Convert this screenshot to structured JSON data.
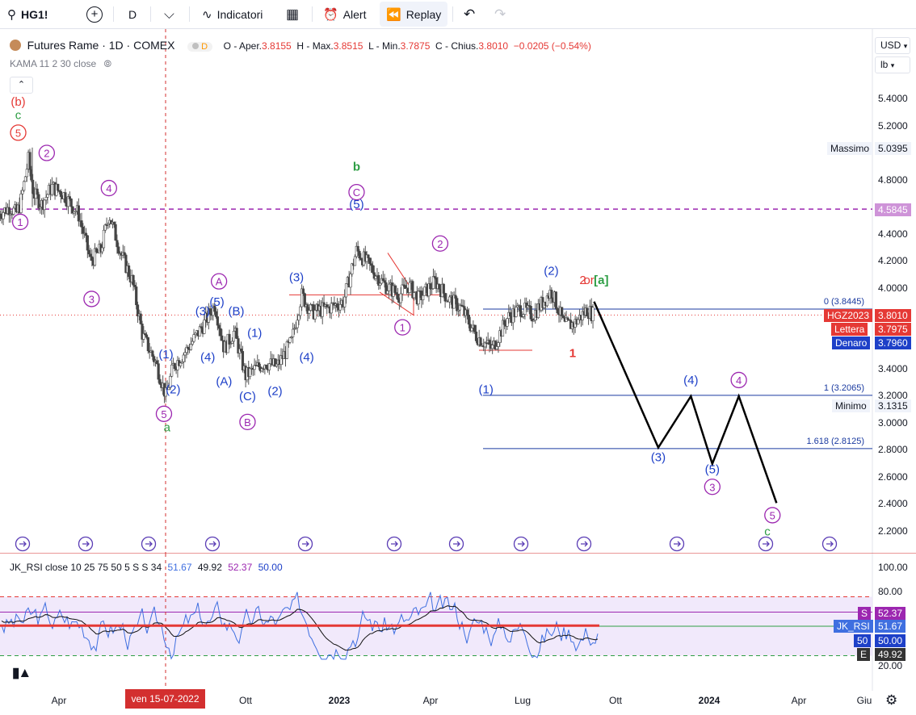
{
  "toolbar": {
    "symbol": "HG1!",
    "interval": "D",
    "indicators_label": "Indicatori",
    "alert_label": "Alert",
    "replay_label": "Replay"
  },
  "legend": {
    "title": "Futures Rame · 1D · COMEX",
    "badge": "D",
    "o_label": "O - Aper.",
    "o_value": "3.8155",
    "h_label": "H - Max.",
    "h_value": "3.8515",
    "l_label": "L - Min.",
    "l_value": "3.7875",
    "c_label": "C - Chius.",
    "c_value": "3.8010",
    "change": "−0.0205 (−0.54%)",
    "kama": "KAMA 11 2 30 close"
  },
  "scale": {
    "currency": "USD",
    "unit": "lb"
  },
  "price_axis": [
    "5.4000",
    "5.2000",
    "4.8000",
    "4.4000",
    "4.2000",
    "4.0000",
    "3.4000",
    "3.2000",
    "3.0000",
    "2.8000",
    "2.6000",
    "2.4000",
    "2.2000"
  ],
  "time_axis": [
    "Apr",
    "Ott",
    "2023",
    "Apr",
    "Lug",
    "Ott",
    "2024",
    "Apr",
    "Giu"
  ],
  "cursor_date": "ven 15-07-2022",
  "price_tags": {
    "massimo_label": "Massimo",
    "massimo_value": "5.0395",
    "level_value": "4.5845",
    "symbol_label": "HGZ2023",
    "last_value": "3.8010",
    "ask_label": "Lettera",
    "ask_value": "3.7975",
    "bid_label": "Denaro",
    "bid_value": "3.7960",
    "minimo_label": "Minimo",
    "minimo_value": "3.1315"
  },
  "fib_levels": [
    {
      "label": "0 (3.8445)",
      "value": 3.8445
    },
    {
      "label": "1 (3.2065)",
      "value": 3.2065
    },
    {
      "label": "1.618 (2.8125)",
      "value": 2.8125
    }
  ],
  "rsi": {
    "title": "JK_RSI close 10 25 75 50 5 S S 34",
    "v1": "51.67",
    "v2": "49.92",
    "v3": "52.37",
    "v4": "50.00",
    "axis": [
      "100.00",
      "80.00",
      "20.00"
    ],
    "tags": [
      {
        "label": "S",
        "value": "52.37"
      },
      {
        "label": "JK_RSI",
        "value": "51.67"
      },
      {
        "label": "50",
        "value": "50.00"
      },
      {
        "label": "E",
        "value": "49.92"
      }
    ]
  },
  "wave_labels": [
    {
      "t": "(b)",
      "x": "2022-02-20",
      "y": 5.35,
      "c": "#e53935"
    },
    {
      "t": "c",
      "x": "2022-02-20",
      "y": 5.25,
      "c": "#2e9e45"
    },
    {
      "t": "5",
      "x": "2022-02-20",
      "y": 5.12,
      "c": "#e53935",
      "circle": true
    },
    {
      "t": "2",
      "x": "2022-03-20",
      "y": 4.97,
      "c": "#9c27b0",
      "circle": true
    },
    {
      "t": "4",
      "x": "2022-05-20",
      "y": 4.71,
      "c": "#9c27b0",
      "circle": true
    },
    {
      "t": "1",
      "x": "2022-02-22",
      "y": 4.46,
      "c": "#9c27b0",
      "circle": true
    },
    {
      "t": "3",
      "x": "2022-05-03",
      "y": 3.89,
      "c": "#9c27b0",
      "circle": true
    },
    {
      "t": "A",
      "x": "2022-09-05",
      "y": 4.02,
      "c": "#9c27b0",
      "circle": true
    },
    {
      "t": "(5)",
      "x": "2022-09-03",
      "y": 3.87,
      "c": "#1e40c8"
    },
    {
      "t": "(3)",
      "x": "2022-08-20",
      "y": 3.8,
      "c": "#1e40c8"
    },
    {
      "t": "(B)",
      "x": "2022-09-22",
      "y": 3.8,
      "c": "#1e40c8"
    },
    {
      "t": "(1)",
      "x": "2022-10-10",
      "y": 3.64,
      "c": "#1e40c8"
    },
    {
      "t": "(1)",
      "x": "2022-07-15",
      "y": 3.48,
      "c": "#1e40c8"
    },
    {
      "t": "(4)",
      "x": "2022-08-25",
      "y": 3.46,
      "c": "#1e40c8"
    },
    {
      "t": "(A)",
      "x": "2022-09-10",
      "y": 3.28,
      "c": "#1e40c8"
    },
    {
      "t": "(2)",
      "x": "2022-07-22",
      "y": 3.22,
      "c": "#1e40c8"
    },
    {
      "t": "(C)",
      "x": "2022-10-03",
      "y": 3.17,
      "c": "#1e40c8"
    },
    {
      "t": "(2)",
      "x": "2022-10-30",
      "y": 3.21,
      "c": "#1e40c8"
    },
    {
      "t": "5",
      "x": "2022-07-13",
      "y": 3.04,
      "c": "#9c27b0",
      "circle": true
    },
    {
      "t": "a",
      "x": "2022-07-16",
      "y": 2.94,
      "c": "#2e9e45"
    },
    {
      "t": "B",
      "x": "2022-10-03",
      "y": 2.98,
      "c": "#9c27b0",
      "circle": true
    },
    {
      "t": "(3)",
      "x": "2022-11-20",
      "y": 4.05,
      "c": "#1e40c8"
    },
    {
      "t": "(4)",
      "x": "2022-11-30",
      "y": 3.46,
      "c": "#1e40c8"
    },
    {
      "t": "b",
      "x": "2023-01-18",
      "y": 4.87,
      "c": "#2e9e45"
    },
    {
      "t": "C",
      "x": "2023-01-18",
      "y": 4.68,
      "c": "#9c27b0",
      "circle": true
    },
    {
      "t": "(5)",
      "x": "2023-01-18",
      "y": 4.59,
      "c": "#1e40c8"
    },
    {
      "t": "1",
      "x": "2023-03-04",
      "y": 3.68,
      "c": "#9c27b0",
      "circle": true
    },
    {
      "t": "2",
      "x": "2023-04-10",
      "y": 4.3,
      "c": "#9c27b0",
      "circle": true
    },
    {
      "t": "(1)",
      "x": "2023-05-25",
      "y": 3.22,
      "c": "#1e40c8"
    },
    {
      "t": "(2)",
      "x": "2023-07-28",
      "y": 4.1,
      "c": "#1e40c8"
    },
    {
      "t": "1",
      "x": "2023-08-18",
      "y": 3.49,
      "c": "#e53935"
    },
    {
      "t": "2",
      "x": "2023-08-28",
      "y": 4.03,
      "c": "#e53935"
    },
    {
      "t": "or",
      "x": "2023-09-03",
      "y": 4.03,
      "c": "#e53935"
    },
    {
      "t": "[a]",
      "x": "2023-09-15",
      "y": 4.03,
      "c": "#2e9e45"
    },
    {
      "t": "(3)",
      "x": "2023-11-10",
      "y": 2.72,
      "c": "#1e40c8"
    },
    {
      "t": "(4)",
      "x": "2023-12-12",
      "y": 3.29,
      "c": "#1e40c8"
    },
    {
      "t": "4",
      "x": "2024-01-28",
      "y": 3.29,
      "c": "#9c27b0",
      "circle": true
    },
    {
      "t": "(5)",
      "x": "2024-01-02",
      "y": 2.63,
      "c": "#1e40c8"
    },
    {
      "t": "3",
      "x": "2024-01-02",
      "y": 2.5,
      "c": "#9c27b0",
      "circle": true
    },
    {
      "t": "5",
      "x": "2024-03-01",
      "y": 2.29,
      "c": "#9c27b0",
      "circle": true
    },
    {
      "t": "c",
      "x": "2024-02-25",
      "y": 2.17,
      "c": "#2e9e45"
    }
  ],
  "chart_data": [
    {
      "type": "line",
      "title": "Futures Rame · 1D · COMEX",
      "xlabel": "",
      "ylabel": "",
      "ylim": [
        2.05,
        5.52
      ],
      "x_range": [
        "2022-02-01",
        "2024-07-01"
      ],
      "price_path": {
        "x": [
          "2022-02-01",
          "2022-02-12",
          "2022-02-18",
          "2022-02-22",
          "2022-03-02",
          "2022-03-07",
          "2022-03-15",
          "2022-03-25",
          "2022-04-05",
          "2022-04-20",
          "2022-05-02",
          "2022-05-12",
          "2022-05-20",
          "2022-06-01",
          "2022-06-12",
          "2022-06-22",
          "2022-07-05",
          "2022-07-15",
          "2022-07-22",
          "2022-08-05",
          "2022-08-20",
          "2022-09-01",
          "2022-09-10",
          "2022-09-20",
          "2022-10-01",
          "2022-10-10",
          "2022-10-20",
          "2022-11-01",
          "2022-11-15",
          "2022-11-25",
          "2022-12-05",
          "2022-12-20",
          "2023-01-05",
          "2023-01-18",
          "2023-02-01",
          "2023-02-15",
          "2023-03-01",
          "2023-03-10",
          "2023-03-20",
          "2023-04-05",
          "2023-04-18",
          "2023-05-01",
          "2023-05-15",
          "2023-05-31",
          "2023-06-15",
          "2023-06-28",
          "2023-07-10",
          "2023-07-28",
          "2023-08-10",
          "2023-08-20",
          "2023-09-01",
          "2023-09-08"
        ],
        "close": [
          4.55,
          4.6,
          4.55,
          4.62,
          4.95,
          4.7,
          4.62,
          4.75,
          4.7,
          4.55,
          4.2,
          4.28,
          4.55,
          4.25,
          4.05,
          3.65,
          3.45,
          3.2,
          3.42,
          3.55,
          3.72,
          3.88,
          3.55,
          3.68,
          3.35,
          3.4,
          3.45,
          3.42,
          3.6,
          3.95,
          3.82,
          3.85,
          3.9,
          4.28,
          4.15,
          4.02,
          3.95,
          4.02,
          3.92,
          4.05,
          3.92,
          3.85,
          3.65,
          3.55,
          3.78,
          3.85,
          3.8,
          3.98,
          3.72,
          3.74,
          3.84,
          3.8
        ],
        "high": 5.0395,
        "low": 3.1315
      },
      "projection": {
        "x": [
          "2023-09-08",
          "2023-11-10",
          "2023-12-12",
          "2024-01-02",
          "2024-01-28",
          "2024-03-05"
        ],
        "y": [
          3.9,
          2.82,
          3.2,
          2.7,
          3.2,
          2.41
        ]
      },
      "horizontal_levels": [
        {
          "name": "Massimo",
          "value": 5.0395
        },
        {
          "name": "",
          "value": 4.5845
        },
        {
          "name": "Minimo",
          "value": 3.1315
        }
      ]
    },
    {
      "type": "line",
      "title": "JK_RSI close 10 25 75 50 5 S S 34",
      "ylim": [
        15,
        100
      ],
      "levels": [
        75,
        50,
        25
      ],
      "series": [
        {
          "name": "JK_RSI",
          "last": 51.67
        },
        {
          "name": "S",
          "last": 52.37
        },
        {
          "name": "E",
          "last": 49.92
        }
      ]
    }
  ],
  "colors": {
    "candle_up": "#4a4a4a",
    "candle_down": "#4a4a4a",
    "fib": "#1a3aa0",
    "level_dash": "#9c27b0",
    "projection": "#000000",
    "cursor": "#d32f2f",
    "rsi_main": "#3f6fe0",
    "rsi_slow": "#111111",
    "rsi_band": "#ede4fa"
  }
}
